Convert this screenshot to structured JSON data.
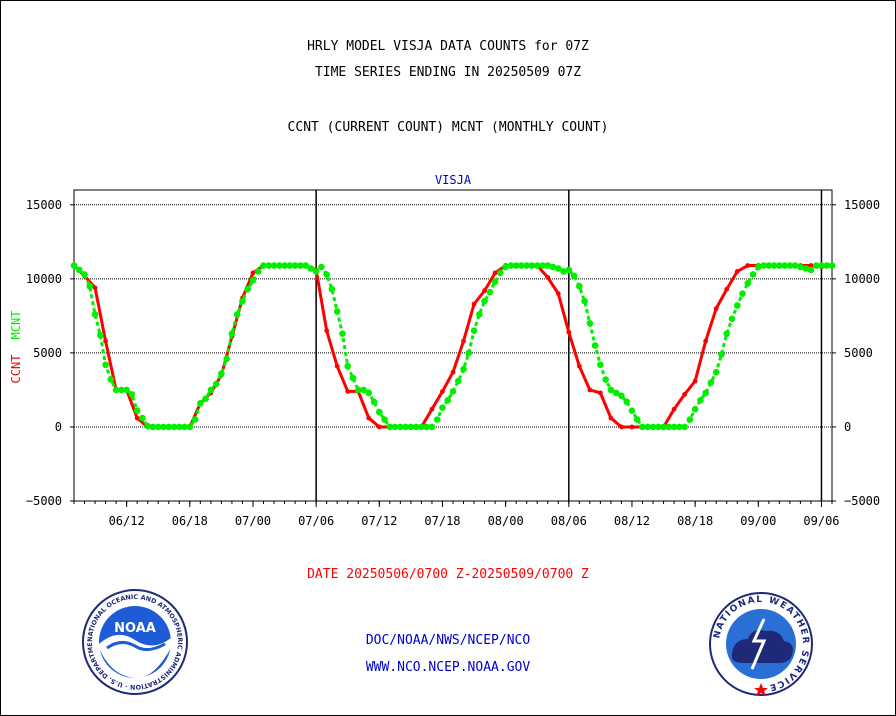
{
  "header": {
    "title_line1": "HRLY MODEL VISJA DATA COUNTS for 07Z",
    "title_line2": "TIME SERIES ENDING IN 20250509 07Z",
    "subtitle": "CCNT (CURRENT COUNT) MCNT (MONTHLY COUNT)"
  },
  "footer": {
    "date_range": "DATE 20250506/0700 Z-20250509/0700 Z",
    "org_path": "DOC/NOAA/NWS/NCEP/NCO",
    "website": "WWW.NCO.NCEP.NOAA.GOV",
    "noaa_logo_text": "NOAA",
    "noaa_ring_text": "NATIONAL OCEANIC AND ATMOSPHERIC ADMINISTRATION · U.S. DEPARTMENT OF COMMERCE ·",
    "nws_ring_text": "NATIONAL WEATHER SERVICE"
  },
  "colors": {
    "ccnt": "#ff0000",
    "mcnt": "#00ee00",
    "panel_label": "#0000cc",
    "axis": "#000000"
  },
  "chart_data": {
    "type": "line",
    "title": "VISJA",
    "ylabel_left_ccnt": "CCNT",
    "ylabel_left_mcnt": "MCNT",
    "x_tick_labels": [
      "06/12",
      "06/18",
      "07/00",
      "07/06",
      "07/12",
      "07/18",
      "08/00",
      "08/06",
      "08/12",
      "08/18",
      "09/00",
      "09/06"
    ],
    "x_tick_hours": [
      5,
      11,
      17,
      23,
      29,
      35,
      41,
      47,
      53,
      59,
      65,
      71
    ],
    "day_boundaries_hours": [
      23,
      47,
      71
    ],
    "xlim": [
      0,
      72
    ],
    "ylim": [
      -5000,
      16000
    ],
    "yticks": [
      -5000,
      0,
      5000,
      10000,
      15000
    ],
    "ytick_labels": [
      "−5000",
      "0",
      "5000",
      "10000",
      "15000"
    ],
    "series": [
      {
        "name": "CCNT",
        "x": [
          0,
          1,
          2,
          3,
          4,
          5,
          6,
          7,
          8,
          9,
          10,
          11,
          12,
          13,
          14,
          15,
          16,
          17,
          18,
          19,
          20,
          21,
          22,
          23,
          24,
          25,
          26,
          27,
          28,
          29,
          30,
          31,
          32,
          33,
          34,
          35,
          36,
          37,
          38,
          39,
          40,
          41,
          42,
          43,
          44,
          45,
          46,
          47,
          48,
          49,
          50,
          51,
          52,
          53,
          54,
          55,
          56,
          57,
          58,
          59,
          60,
          61,
          62,
          63,
          64,
          65,
          66,
          67,
          68,
          69,
          70,
          71,
          72
        ],
        "values": [
          10900,
          10200,
          9400,
          5800,
          2500,
          2500,
          600,
          0,
          0,
          0,
          0,
          0,
          1600,
          2300,
          3500,
          6100,
          8700,
          10400,
          10900,
          10900,
          10900,
          10900,
          10900,
          10600,
          6500,
          4100,
          2400,
          2400,
          600,
          0,
          0,
          0,
          0,
          0,
          1200,
          2400,
          3700,
          5800,
          8300,
          9200,
          10400,
          10900,
          10900,
          10900,
          10900,
          10100,
          9000,
          6400,
          4100,
          2500,
          2300,
          600,
          0,
          0,
          0,
          0,
          0,
          1200,
          2200,
          3100,
          5800,
          8000,
          9300,
          10500,
          10900,
          10900,
          10900,
          10900,
          10900,
          10900,
          10900,
          10800,
          10900
        ]
      },
      {
        "name": "MCNT",
        "x": [
          0,
          0.5,
          1,
          1.5,
          2,
          2.5,
          3,
          3.5,
          4,
          4.5,
          5,
          5.5,
          6,
          6.5,
          7,
          7.5,
          8,
          8.5,
          9,
          9.5,
          10,
          10.5,
          11,
          11.5,
          12,
          12.5,
          13,
          13.5,
          14,
          14.5,
          15,
          15.5,
          16,
          16.5,
          17,
          17.5,
          18,
          18.5,
          19,
          19.5,
          20,
          20.5,
          21,
          21.5,
          22,
          22.5,
          23,
          23.5,
          24,
          24.5,
          25,
          25.5,
          26,
          26.5,
          27,
          27.5,
          28,
          28.5,
          29,
          29.5,
          30,
          30.5,
          31,
          31.5,
          32,
          32.5,
          33,
          33.5,
          34,
          34.5,
          35,
          35.5,
          36,
          36.5,
          37,
          37.5,
          38,
          38.5,
          39,
          39.5,
          40,
          40.5,
          41,
          41.5,
          42,
          42.5,
          43,
          43.5,
          44,
          44.5,
          45,
          45.5,
          46,
          46.5,
          47,
          47.5,
          48,
          48.5,
          49,
          49.5,
          50,
          50.5,
          51,
          51.5,
          52,
          52.5,
          53,
          53.5,
          54,
          54.5,
          55,
          55.5,
          56,
          56.5,
          57,
          57.5,
          58,
          58.5,
          59,
          59.5,
          60,
          60.5,
          61,
          61.5,
          62,
          62.5,
          63,
          63.5,
          64,
          64.5,
          65,
          65.5,
          66,
          66.5,
          67,
          67.5,
          68,
          68.5,
          69,
          69.5,
          70,
          70.5,
          71,
          71.5,
          72
        ],
        "values": [
          10900,
          10600,
          10300,
          9500,
          7600,
          6200,
          4200,
          3200,
          2500,
          2500,
          2500,
          2200,
          1100,
          600,
          50,
          0,
          0,
          0,
          0,
          0,
          0,
          0,
          0,
          500,
          1600,
          1900,
          2500,
          2900,
          3600,
          4600,
          6300,
          7600,
          8500,
          9300,
          9900,
          10500,
          10900,
          10900,
          10900,
          10900,
          10900,
          10900,
          10900,
          10900,
          10900,
          10700,
          10500,
          10800,
          10300,
          9300,
          7800,
          6300,
          4100,
          3300,
          2500,
          2500,
          2300,
          1700,
          1000,
          500,
          0,
          0,
          0,
          0,
          0,
          0,
          0,
          0,
          0,
          500,
          1300,
          1800,
          2400,
          3100,
          3900,
          5000,
          6500,
          7600,
          8500,
          9100,
          9800,
          10400,
          10800,
          10900,
          10900,
          10900,
          10900,
          10900,
          10900,
          10900,
          10900,
          10800,
          10700,
          10500,
          10600,
          10200,
          9500,
          8500,
          7000,
          5500,
          4200,
          3200,
          2500,
          2300,
          2100,
          1700,
          1100,
          500,
          0,
          0,
          0,
          0,
          0,
          0,
          0,
          0,
          0,
          500,
          1200,
          1800,
          2300,
          3000,
          3700,
          4900,
          6300,
          7300,
          8200,
          9000,
          9700,
          10300,
          10800,
          10900,
          10900,
          10900,
          10900,
          10900,
          10900,
          10900,
          10800,
          10700,
          10600,
          10900,
          10900,
          10900,
          10900
        ]
      }
    ]
  }
}
